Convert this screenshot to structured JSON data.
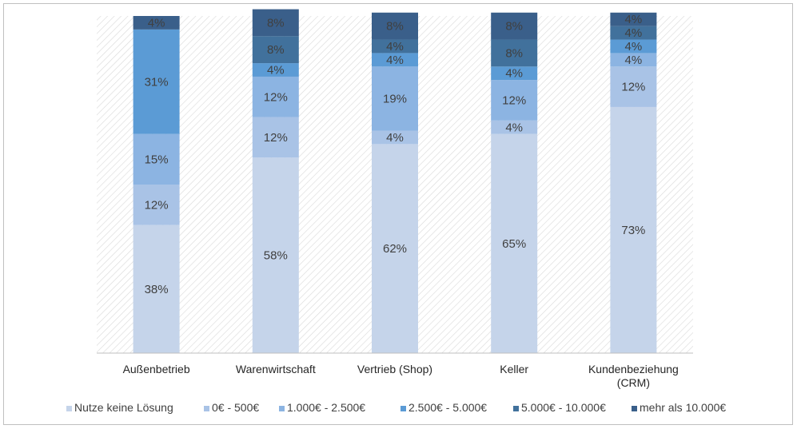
{
  "chart_data": {
    "type": "bar",
    "stacked": true,
    "categories": [
      [
        "Außenbetrieb"
      ],
      [
        "Warenwirtschaft"
      ],
      [
        "Vertrieb (Shop)"
      ],
      [
        "Keller"
      ],
      [
        "Kundenbeziehung",
        "(CRM)"
      ]
    ],
    "series": [
      {
        "name": "Nutze keine Lösung",
        "color": "#c5d4ea",
        "values": [
          38,
          58,
          62,
          65,
          73
        ]
      },
      {
        "name": "0€ - 500€",
        "color": "#a9c3e6",
        "values": [
          12,
          12,
          4,
          4,
          12
        ]
      },
      {
        "name": "1.000€ - 2.500€",
        "color": "#8cb4e2",
        "values": [
          15,
          12,
          19,
          12,
          4
        ]
      },
      {
        "name": "2.500€ - 5.000€",
        "color": "#5b9bd5",
        "values": [
          31,
          4,
          4,
          4,
          4
        ]
      },
      {
        "name": "5.000€ - 10.000€",
        "color": "#41719c",
        "values": [
          0,
          8,
          4,
          8,
          4
        ]
      },
      {
        "name": "mehr als 10.000€",
        "color": "#3a5f8a",
        "values": [
          4,
          8,
          8,
          8,
          4
        ]
      }
    ],
    "ylim": [
      0,
      100
    ],
    "grid": false,
    "legend": "bottom",
    "plot_background": "hatched"
  }
}
